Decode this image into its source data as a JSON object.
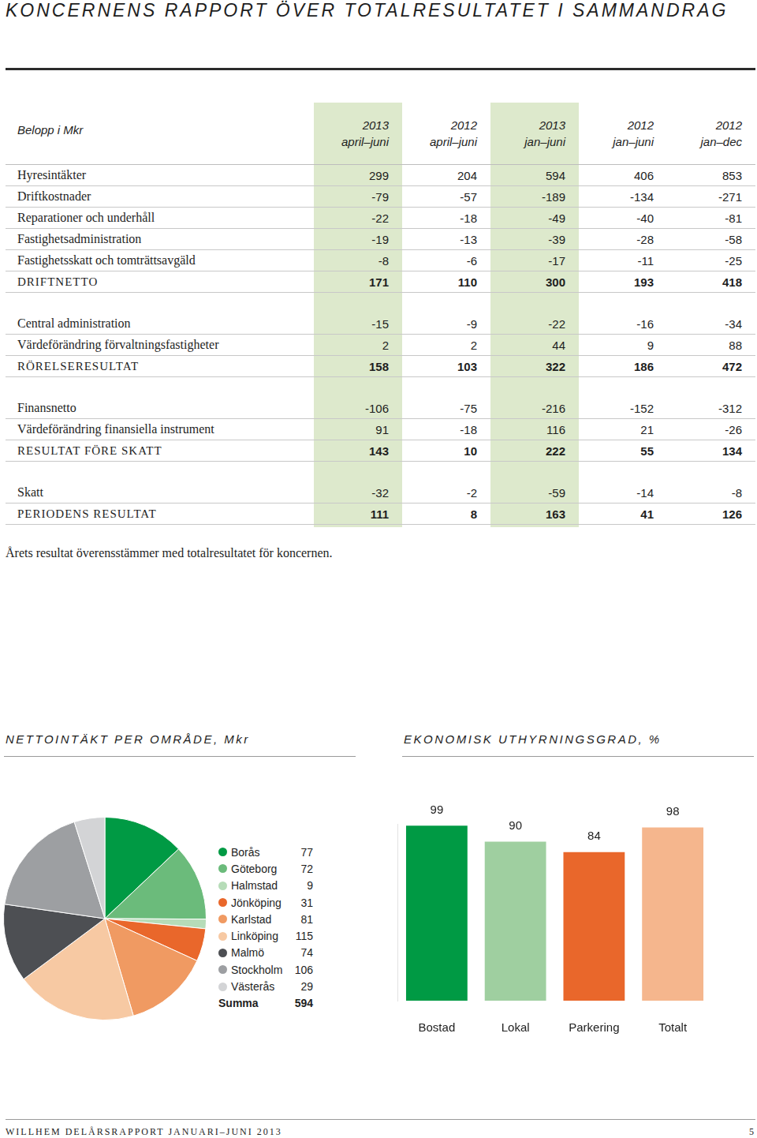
{
  "title": "KONCERNENS RAPPORT ÖVER TOTALRESULTATET I SAMMANDRAG",
  "table": {
    "header": [
      "Belopp i Mkr",
      {
        "year": "2013",
        "period": "april–juni"
      },
      {
        "year": "2012",
        "period": "april–juni"
      },
      {
        "year": "2013",
        "period": "jan–juni"
      },
      {
        "year": "2012",
        "period": "jan–juni"
      },
      {
        "year": "2012",
        "period": "jan–dec"
      }
    ],
    "groups": [
      [
        {
          "label": "Hyresintäkter",
          "values": [
            299,
            204,
            594,
            406,
            853
          ]
        },
        {
          "label": "Driftkostnader",
          "values": [
            -79,
            -57,
            -189,
            -134,
            -271
          ]
        },
        {
          "label": "Reparationer och underhåll",
          "values": [
            -22,
            -18,
            -49,
            -40,
            -81
          ]
        },
        {
          "label": "Fastighetsadministration",
          "values": [
            -19,
            -13,
            -39,
            -28,
            -58
          ]
        },
        {
          "label": "Fastighetsskatt och tomträttsavgäld",
          "values": [
            -8,
            -6,
            -17,
            -11,
            -25
          ]
        },
        {
          "label": "DRIFTNETTO",
          "values": [
            171,
            110,
            300,
            193,
            418
          ],
          "emphasis": true
        }
      ],
      [
        {
          "label": "Central administration",
          "values": [
            -15,
            -9,
            -22,
            -16,
            -34
          ]
        },
        {
          "label": "Värdeförändring förvaltningsfastigheter",
          "values": [
            2,
            2,
            44,
            9,
            88
          ]
        },
        {
          "label": "RÖRELSERESULTAT",
          "values": [
            158,
            103,
            322,
            186,
            472
          ],
          "emphasis": true
        }
      ],
      [
        {
          "label": "Finansnetto",
          "values": [
            -106,
            -75,
            -216,
            -152,
            -312
          ]
        },
        {
          "label": "Värdeförändring finansiella instrument",
          "values": [
            91,
            -18,
            116,
            21,
            -26
          ]
        },
        {
          "label": "RESULTAT FÖRE SKATT",
          "values": [
            143,
            10,
            222,
            55,
            134
          ],
          "emphasis": true
        }
      ],
      [
        {
          "label": "Skatt",
          "values": [
            -32,
            -2,
            -59,
            -14,
            -8
          ]
        },
        {
          "label": "PERIODENS RESULTAT",
          "values": [
            111,
            8,
            163,
            41,
            126
          ],
          "emphasis": true
        }
      ]
    ]
  },
  "note": "Årets resultat överensstämmer med totalresultatet för koncernen.",
  "chart_data": [
    {
      "type": "pie",
      "title": "NETTOINTÄKT PER OMRÅDE, Mkr",
      "categories": [
        "Borås",
        "Göteborg",
        "Halmstad",
        "Jönköping",
        "Karlstad",
        "Linköping",
        "Malmö",
        "Stockholm",
        "Västerås"
      ],
      "values": [
        77,
        72,
        9,
        31,
        81,
        115,
        74,
        106,
        29
      ],
      "colors": [
        "#009a44",
        "#6bbb7b",
        "#b6dcb8",
        "#e9672b",
        "#f09a62",
        "#f7c9a3",
        "#4d4f53",
        "#9d9fa2",
        "#d3d4d6"
      ],
      "legend": "right",
      "total": {
        "label": "Summa",
        "value": 594
      }
    },
    {
      "type": "bar",
      "title": "EKONOMISK UTHYRNINGSGRAD, %",
      "categories": [
        "Bostad",
        "Lokal",
        "Parkering",
        "Totalt"
      ],
      "values": [
        99,
        90,
        84,
        98
      ],
      "colors": [
        "#009a44",
        "#9fcfa0",
        "#e9672b",
        "#f5b68d"
      ],
      "ylim": [
        0,
        100
      ],
      "data_labels": true,
      "tick_labels": "x"
    }
  ],
  "footer": {
    "text": "WILLHEM DELÅRSRAPPORT JANUARI–JUNI 2013",
    "page": 5
  }
}
